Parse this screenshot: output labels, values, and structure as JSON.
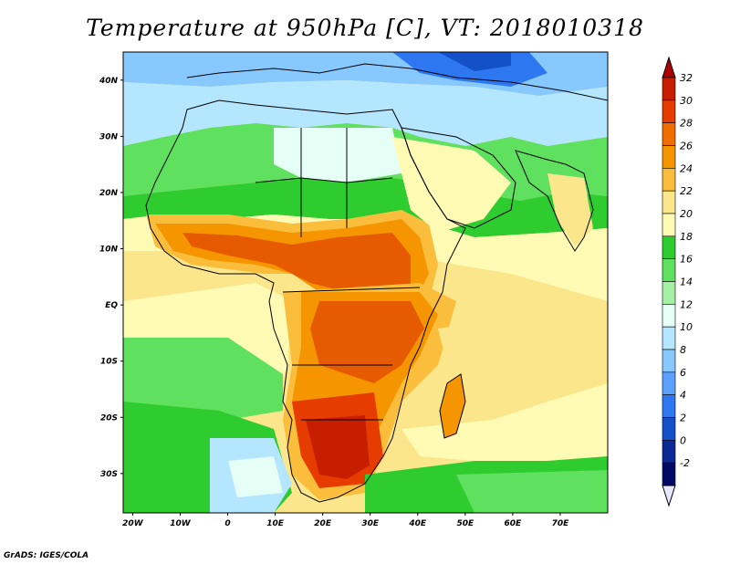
{
  "title": "Temperature at 950hPa [C], VT: 2018010318",
  "credit": "GrADS: IGES/COLA",
  "map": {
    "lat_labels": [
      "40N",
      "30N",
      "20N",
      "10N",
      "EQ",
      "10S",
      "20S",
      "30S"
    ],
    "lat_values": [
      40,
      30,
      20,
      10,
      0,
      -10,
      -20,
      -30
    ],
    "lon_labels": [
      "20W",
      "10W",
      "0",
      "10E",
      "20E",
      "30E",
      "40E",
      "50E",
      "60E",
      "70E"
    ],
    "lon_values": [
      -20,
      -10,
      0,
      10,
      20,
      30,
      40,
      50,
      60,
      70
    ],
    "lon_range": [
      -22,
      80
    ],
    "lat_range": [
      -37,
      45
    ]
  },
  "colorbar": {
    "unit": "C",
    "labels": [
      "32",
      "30",
      "28",
      "26",
      "24",
      "22",
      "20",
      "18",
      "16",
      "14",
      "12",
      "10",
      "8",
      "6",
      "4",
      "2",
      "0",
      "-2"
    ],
    "levels": [
      32,
      30,
      28,
      26,
      24,
      22,
      20,
      18,
      16,
      14,
      12,
      10,
      8,
      6,
      4,
      2,
      0,
      -2
    ],
    "colors": [
      "#c81e00",
      "#e63c00",
      "#f06e00",
      "#f59600",
      "#fabe3c",
      "#fce68c",
      "#fffab4",
      "#2ecc2e",
      "#5fe05f",
      "#a6f0a6",
      "#e6fff6",
      "#b4e6ff",
      "#87c8ff",
      "#5aa0ff",
      "#2d78f0",
      "#1450c8",
      "#0a2896",
      "#000a64"
    ],
    "over_color": "#aa0000",
    "under_color": "#e6e6ff"
  }
}
